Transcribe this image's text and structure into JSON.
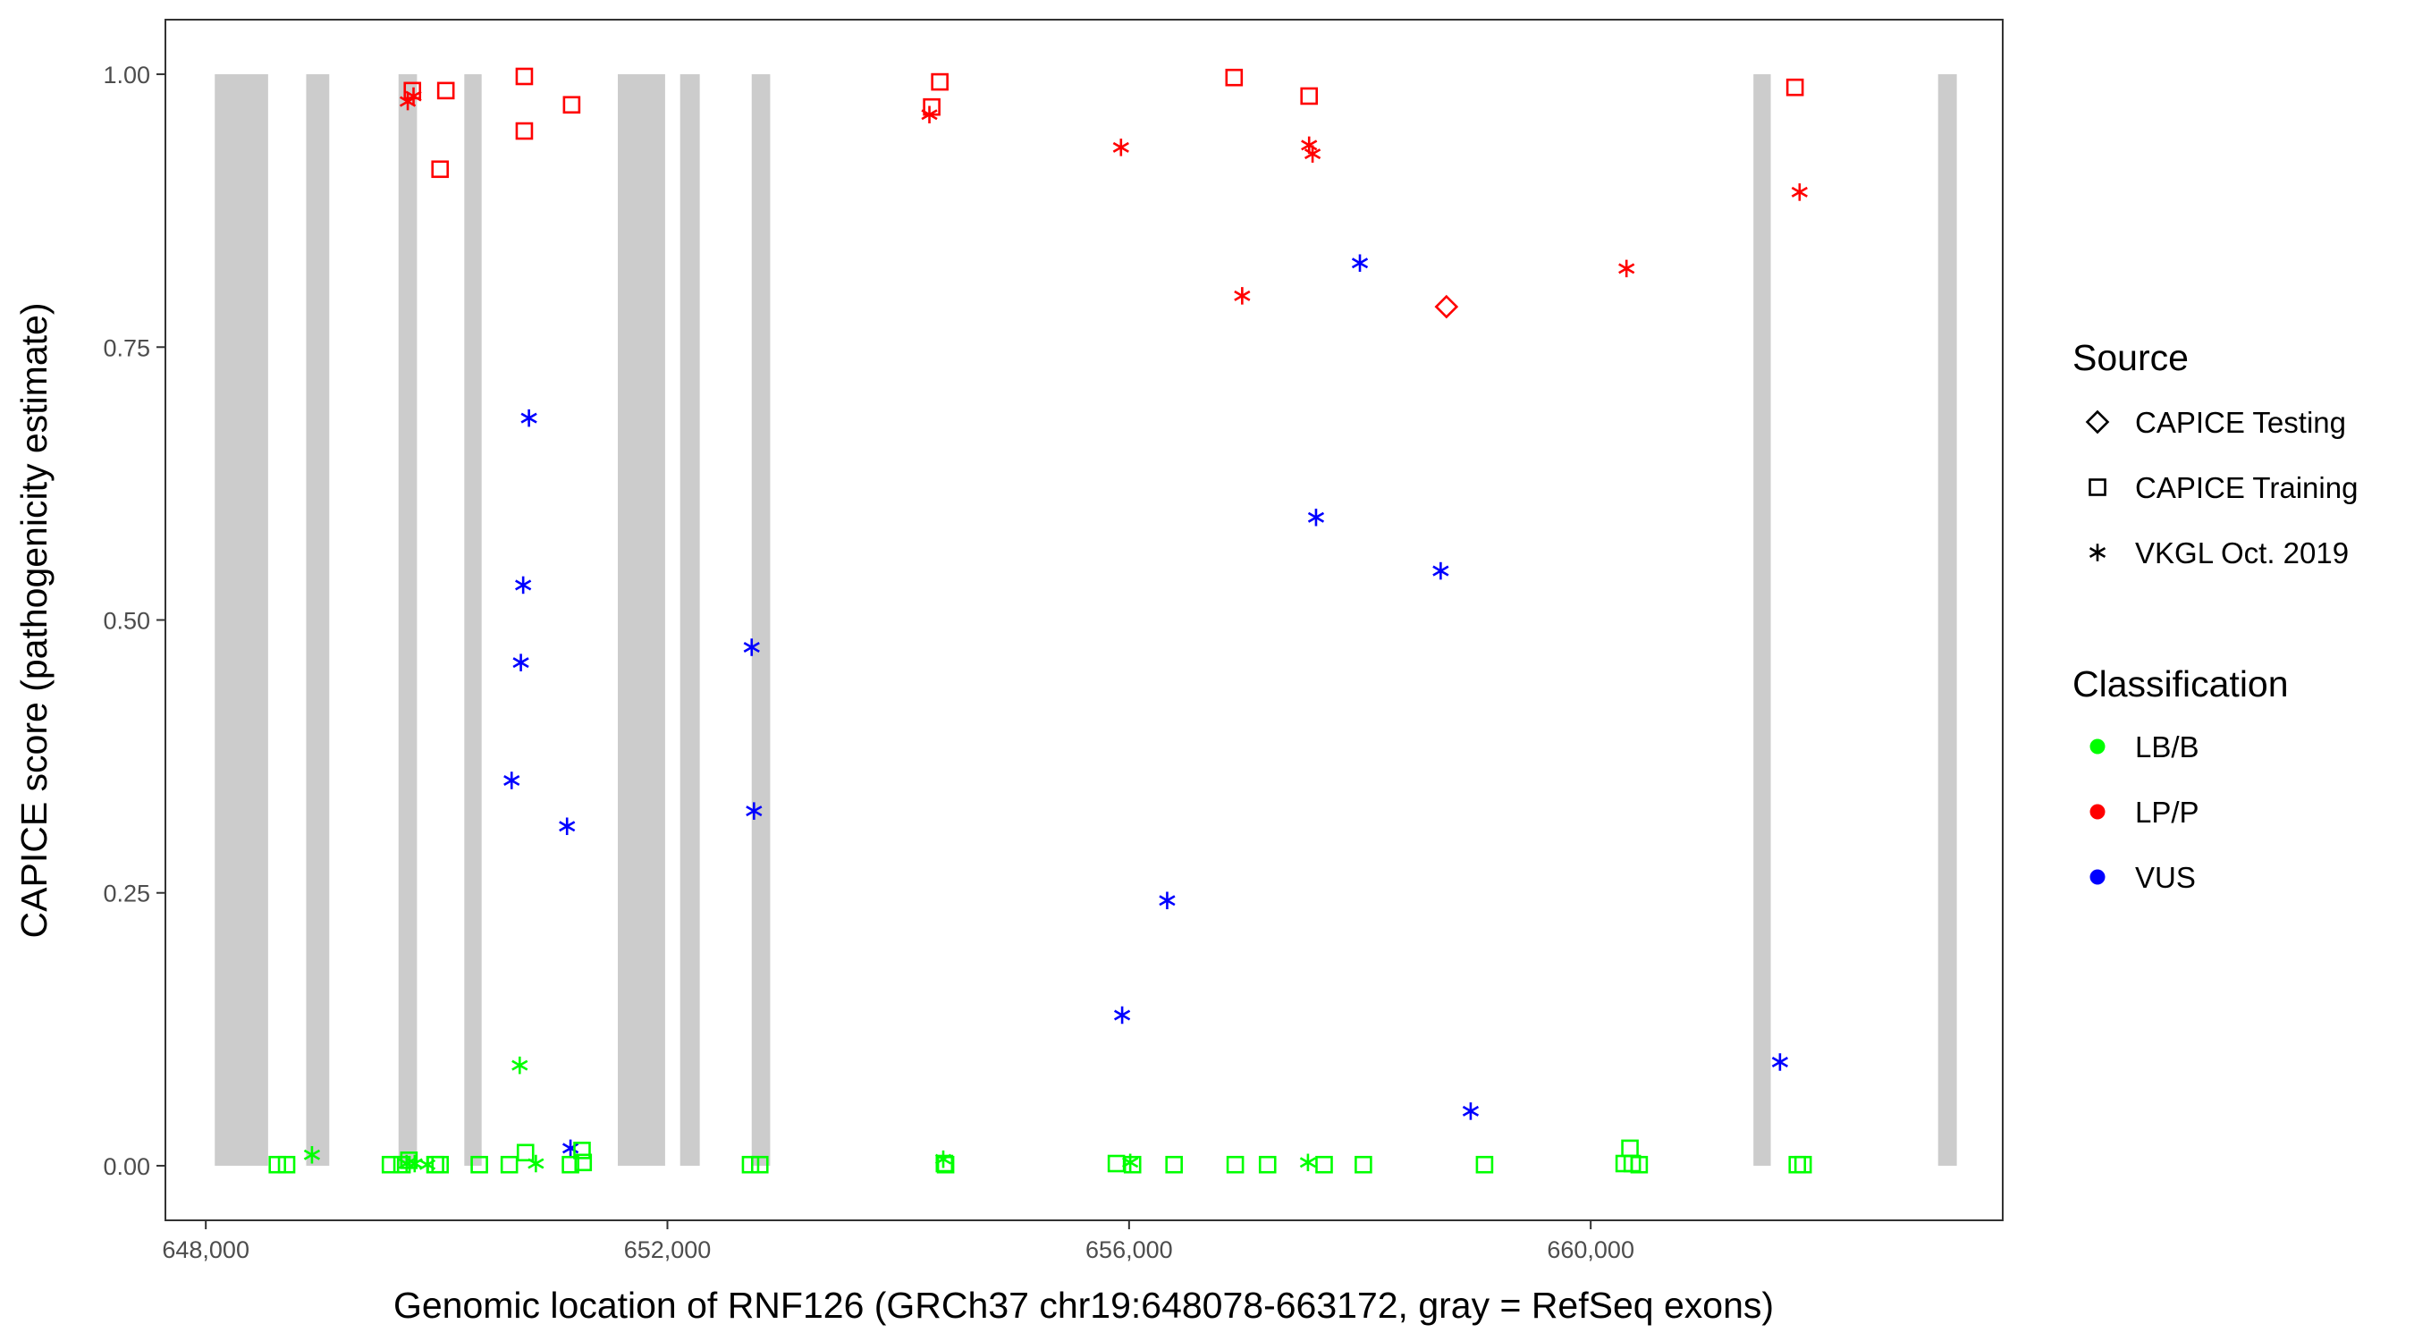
{
  "chart_data": {
    "type": "scatter",
    "xlabel": "Genomic location of RNF126 (GRCh37 chr19:648078-663172, gray = RefSeq exons)",
    "ylabel": "CAPICE score (pathogenicity estimate)",
    "xlim": [
      647650,
      663570
    ],
    "ylim": [
      -0.05,
      1.05
    ],
    "x_ticks": [
      648000,
      652000,
      656000,
      660000
    ],
    "x_tick_labels": [
      "648,000",
      "652,000",
      "656,000",
      "660,000"
    ],
    "y_ticks": [
      0,
      0.25,
      0.5,
      0.75,
      1.0
    ],
    "y_tick_labels": [
      "0.00",
      "0.25",
      "0.50",
      "0.75",
      "1.00"
    ],
    "grid": false,
    "exons": [
      [
        648078,
        648540
      ],
      [
        648870,
        649070
      ],
      [
        649670,
        649830
      ],
      [
        650240,
        650390
      ],
      [
        651570,
        651980
      ],
      [
        652110,
        652280
      ],
      [
        652730,
        652890
      ],
      [
        661410,
        661560
      ],
      [
        663010,
        663172
      ]
    ],
    "exon_color": "#cccccc",
    "legend": {
      "position": "right",
      "source": {
        "title": "Source",
        "items": [
          {
            "label": "CAPICE Testing",
            "shape": "diamond"
          },
          {
            "label": "CAPICE Training",
            "shape": "square"
          },
          {
            "label": "VKGL Oct. 2019",
            "shape": "asterisk"
          }
        ]
      },
      "classification": {
        "title": "Classification",
        "items": [
          {
            "label": "LB/B",
            "color": "#00ff00"
          },
          {
            "label": "LP/P",
            "color": "#ff0000"
          },
          {
            "label": "VUS",
            "color": "#0000ff"
          }
        ]
      }
    },
    "series": [
      {
        "classification": "LP/P",
        "source": "CAPICE Training",
        "points": [
          [
            649790,
            0.985
          ],
          [
            650080,
            0.985
          ],
          [
            650030,
            0.913
          ],
          [
            650760,
            0.998
          ],
          [
            650760,
            0.948
          ],
          [
            651170,
            0.972
          ],
          [
            654290,
            0.97
          ],
          [
            654360,
            0.993
          ],
          [
            656910,
            0.997
          ],
          [
            657560,
            0.98
          ],
          [
            661770,
            0.988
          ]
        ]
      },
      {
        "classification": "LP/P",
        "source": "VKGL Oct. 2019",
        "points": [
          [
            649750,
            0.975
          ],
          [
            649800,
            0.98
          ],
          [
            654270,
            0.963
          ],
          [
            655930,
            0.933
          ],
          [
            656980,
            0.797
          ],
          [
            657560,
            0.935
          ],
          [
            657590,
            0.927
          ],
          [
            660310,
            0.822
          ],
          [
            661810,
            0.892
          ]
        ]
      },
      {
        "classification": "LP/P",
        "source": "CAPICE Testing",
        "points": [
          [
            658750,
            0.787
          ]
        ]
      },
      {
        "classification": "VUS",
        "source": "VKGL Oct. 2019",
        "points": [
          [
            650800,
            0.685
          ],
          [
            650750,
            0.532
          ],
          [
            650730,
            0.461
          ],
          [
            650650,
            0.353
          ],
          [
            651130,
            0.311
          ],
          [
            651160,
            0.016
          ],
          [
            652730,
            0.475
          ],
          [
            652750,
            0.325
          ],
          [
            655940,
            0.138
          ],
          [
            656330,
            0.243
          ],
          [
            657620,
            0.594
          ],
          [
            658000,
            0.827
          ],
          [
            658700,
            0.545
          ],
          [
            658960,
            0.05
          ],
          [
            661640,
            0.095
          ]
        ]
      },
      {
        "classification": "LB/B",
        "source": "VKGL Oct. 2019",
        "points": [
          [
            648920,
            0.01
          ],
          [
            649740,
            0.002
          ],
          [
            649810,
            0.002
          ],
          [
            649920,
            0.001
          ],
          [
            650720,
            0.092
          ],
          [
            650860,
            0.002
          ],
          [
            654390,
            0.006
          ],
          [
            656010,
            0.003
          ],
          [
            657550,
            0.003
          ]
        ]
      },
      {
        "classification": "LB/B",
        "source": "CAPICE Training",
        "points": [
          [
            648620,
            0.001
          ],
          [
            648700,
            0.001
          ],
          [
            649600,
            0.001
          ],
          [
            649700,
            0.001
          ],
          [
            649760,
            0.005
          ],
          [
            649990,
            0.001
          ],
          [
            650030,
            0.001
          ],
          [
            650370,
            0.001
          ],
          [
            650630,
            0.001
          ],
          [
            650770,
            0.012
          ],
          [
            651160,
            0.001
          ],
          [
            651260,
            0.014
          ],
          [
            651270,
            0.003
          ],
          [
            652720,
            0.001
          ],
          [
            652800,
            0.001
          ],
          [
            654400,
            0.002
          ],
          [
            654410,
            0.001
          ],
          [
            655890,
            0.002
          ],
          [
            656030,
            0.001
          ],
          [
            656390,
            0.001
          ],
          [
            656920,
            0.001
          ],
          [
            657200,
            0.001
          ],
          [
            657690,
            0.001
          ],
          [
            658030,
            0.001
          ],
          [
            659080,
            0.001
          ],
          [
            660290,
            0.002
          ],
          [
            660340,
            0.016
          ],
          [
            660360,
            0.002
          ],
          [
            660420,
            0.001
          ],
          [
            661790,
            0.001
          ],
          [
            661840,
            0.001
          ]
        ]
      }
    ]
  }
}
